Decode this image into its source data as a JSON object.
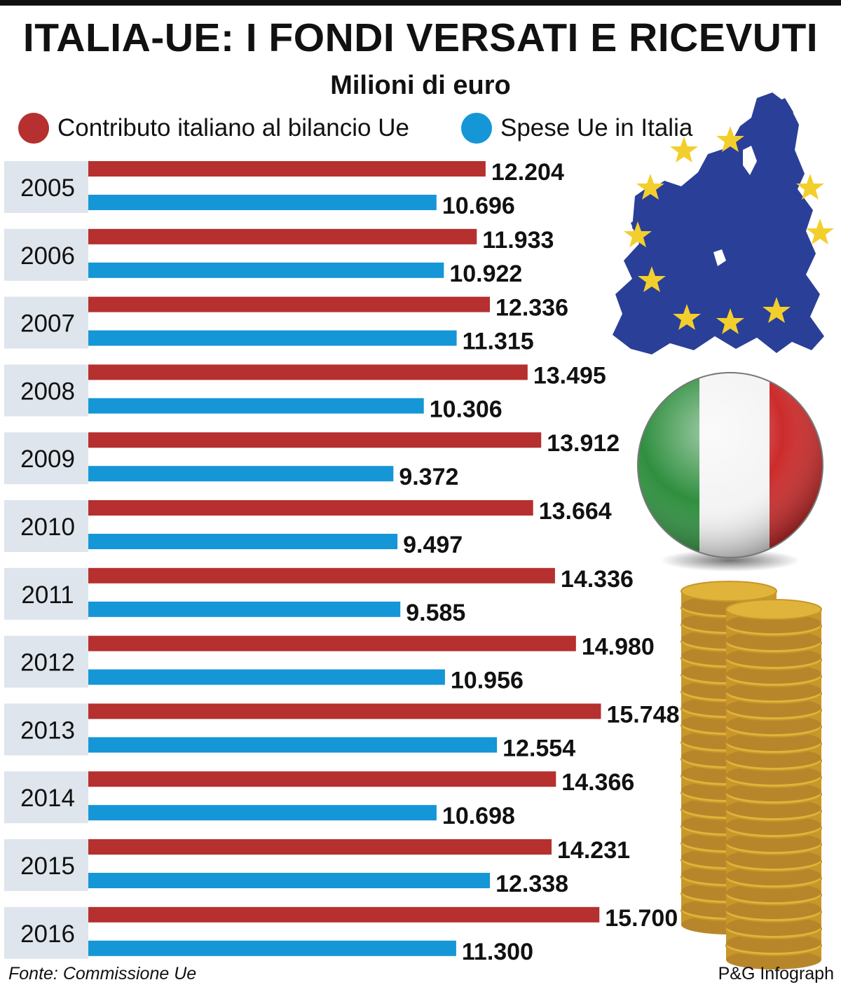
{
  "header": {
    "title": "ITALIA-UE: I FONDI VERSATI E RICEVUTI",
    "subtitle": "Milioni di euro"
  },
  "colors": {
    "contributo": "#b5302e",
    "spese": "#1596d6",
    "year_band": "#dfe5ec",
    "eu_blue": "#2a3f97",
    "star_gold": "#f3cf2d",
    "coin_gold": "#e0b33a"
  },
  "chart_data": {
    "type": "bar",
    "orientation": "horizontal",
    "categories": [
      "2005",
      "2006",
      "2007",
      "2008",
      "2009",
      "2010",
      "2011",
      "2012",
      "2013",
      "2014",
      "2015",
      "2016"
    ],
    "series": [
      {
        "name": "Contributo italiano al bilancio Ue",
        "values": [
          12204,
          11933,
          12336,
          13495,
          13912,
          13664,
          14336,
          14980,
          15748,
          14366,
          14231,
          15700
        ],
        "labels": [
          "12.204",
          "11.933",
          "12.336",
          "13.495",
          "13.912",
          "13.664",
          "14.336",
          "14.980",
          "15.748",
          "14.366",
          "14.231",
          "15.700"
        ]
      },
      {
        "name": "Spese Ue in Italia",
        "values": [
          10696,
          10922,
          11315,
          10306,
          9372,
          9497,
          9585,
          10956,
          12554,
          10698,
          12338,
          11300
        ],
        "labels": [
          "10.696",
          "10.922",
          "11.315",
          "10.306",
          "9.372",
          "9.497",
          "9.585",
          "10.956",
          "12.554",
          "10.698",
          "12.338",
          "11.300"
        ]
      }
    ],
    "legend_position": "top",
    "grid": false
  },
  "footer": {
    "source": "Fonte: Commissione Ue",
    "credit": "P&G Infograph"
  }
}
